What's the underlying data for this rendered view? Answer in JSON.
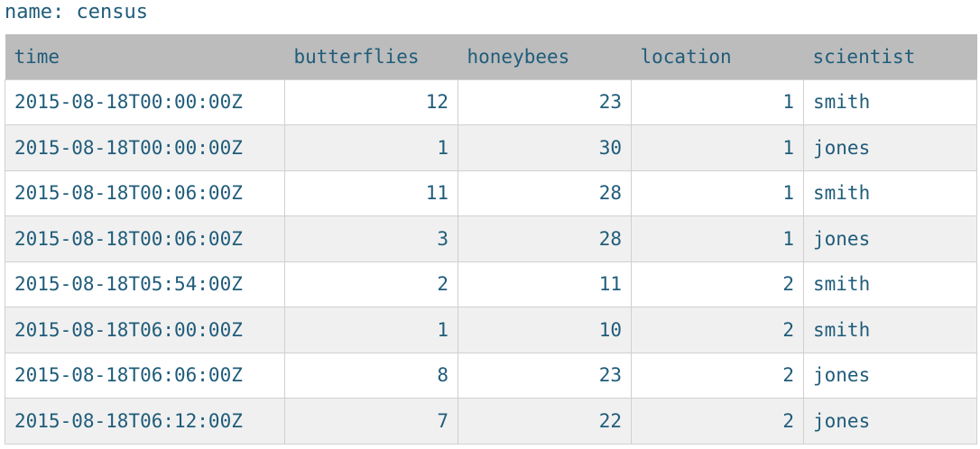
{
  "series": {
    "name_label": "name: census"
  },
  "table": {
    "headers": [
      "time",
      "butterflies",
      "honeybees",
      "location",
      "scientist"
    ],
    "rows": [
      [
        "2015-08-18T00:00:00Z",
        "12",
        "23",
        "1",
        "smith"
      ],
      [
        "2015-08-18T00:00:00Z",
        "1",
        "30",
        "1",
        "jones"
      ],
      [
        "2015-08-18T00:06:00Z",
        "11",
        "28",
        "1",
        "smith"
      ],
      [
        "2015-08-18T00:06:00Z",
        "3",
        "28",
        "1",
        "jones"
      ],
      [
        "2015-08-18T05:54:00Z",
        "2",
        "11",
        "2",
        "smith"
      ],
      [
        "2015-08-18T06:00:00Z",
        "1",
        "10",
        "2",
        "smith"
      ],
      [
        "2015-08-18T06:06:00Z",
        "8",
        "23",
        "2",
        "jones"
      ],
      [
        "2015-08-18T06:12:00Z",
        "7",
        "22",
        "2",
        "jones"
      ]
    ]
  }
}
